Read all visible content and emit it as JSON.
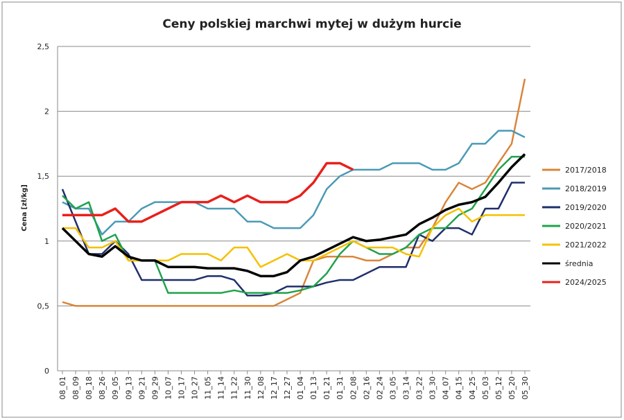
{
  "chart_data": {
    "type": "line",
    "title": "Ceny polskiej marchwi mytej w dużym hurcie",
    "y_label": "Cena [zł/kg]",
    "categories": [
      "08_01",
      "08_09",
      "08_18",
      "08_26",
      "09_05",
      "09_13",
      "09_21",
      "09_29",
      "10_07",
      "10_17",
      "10_27",
      "11_05",
      "11_14",
      "11_22",
      "11_30",
      "12_08",
      "12_17",
      "12_27",
      "01_04",
      "01_13",
      "01_21",
      "01_31",
      "02_08",
      "02_16",
      "02_24",
      "03_05",
      "03_14",
      "03_22",
      "03_30",
      "04_07",
      "04_15",
      "04_25",
      "05_03",
      "05_12",
      "05_20",
      "05_30"
    ],
    "ylim": [
      0,
      2.5
    ],
    "yticks": [
      0,
      {
        "value": 0.5,
        "label": "0,5"
      },
      1,
      {
        "value": 1.5,
        "label": "1,5"
      },
      2,
      {
        "value": 2.5,
        "label": "2,5"
      }
    ],
    "grid": true,
    "legend": "right",
    "series": [
      {
        "name": "2017/2018",
        "color": "#d9853b",
        "values": [
          0.53,
          0.5,
          0.5,
          0.5,
          0.5,
          0.5,
          0.5,
          0.5,
          0.5,
          0.5,
          0.5,
          0.5,
          0.5,
          0.5,
          0.5,
          0.5,
          0.5,
          0.55,
          0.6,
          0.85,
          0.88,
          0.88,
          0.88,
          0.85,
          0.85,
          0.9,
          0.95,
          0.95,
          1.1,
          1.3,
          1.45,
          1.4,
          1.45,
          1.6,
          1.75,
          2.25
        ]
      },
      {
        "name": "2018/2019",
        "color": "#4a9ab5",
        "values": [
          1.3,
          1.25,
          1.25,
          1.05,
          1.15,
          1.15,
          1.25,
          1.3,
          1.3,
          1.3,
          1.3,
          1.25,
          1.25,
          1.25,
          1.15,
          1.15,
          1.1,
          1.1,
          1.1,
          1.2,
          1.4,
          1.5,
          1.55,
          1.55,
          1.55,
          1.6,
          1.6,
          1.6,
          1.55,
          1.55,
          1.6,
          1.75,
          1.75,
          1.85,
          1.85,
          1.8
        ]
      },
      {
        "name": "2019/2020",
        "color": "#1f2f6b",
        "values": [
          1.4,
          1.15,
          0.9,
          0.9,
          1.0,
          0.9,
          0.7,
          0.7,
          0.7,
          0.7,
          0.7,
          0.73,
          0.73,
          0.7,
          0.58,
          0.58,
          0.6,
          0.65,
          0.65,
          0.65,
          0.68,
          0.7,
          0.7,
          0.75,
          0.8,
          0.8,
          0.8,
          1.05,
          1.0,
          1.1,
          1.1,
          1.05,
          1.25,
          1.25,
          1.45,
          1.45
        ]
      },
      {
        "name": "2020/2021",
        "color": "#1fa24b",
        "values": [
          1.35,
          1.25,
          1.3,
          1.0,
          1.05,
          0.85,
          0.85,
          0.85,
          0.6,
          0.6,
          0.6,
          0.6,
          0.6,
          0.62,
          0.6,
          0.6,
          0.6,
          0.6,
          0.62,
          0.65,
          0.75,
          0.9,
          1.0,
          0.95,
          0.9,
          0.9,
          0.95,
          1.05,
          1.1,
          1.1,
          1.2,
          1.25,
          1.4,
          1.55,
          1.65,
          1.65
        ]
      },
      {
        "name": "2021/2022",
        "color": "#f5c000",
        "values": [
          1.1,
          1.1,
          0.95,
          0.95,
          1.0,
          0.85,
          0.85,
          0.85,
          0.85,
          0.9,
          0.9,
          0.9,
          0.85,
          0.95,
          0.95,
          0.8,
          0.85,
          0.9,
          0.85,
          0.85,
          0.9,
          0.95,
          1.0,
          0.95,
          0.95,
          0.95,
          0.9,
          0.88,
          1.1,
          1.2,
          1.25,
          1.15,
          1.2,
          1.2,
          1.2,
          1.2
        ]
      },
      {
        "name": "średnia",
        "color": "#000000",
        "values": [
          1.1,
          1.0,
          0.9,
          0.88,
          0.96,
          0.88,
          0.85,
          0.85,
          0.8,
          0.8,
          0.8,
          0.79,
          0.79,
          0.79,
          0.77,
          0.73,
          0.73,
          0.76,
          0.85,
          0.88,
          0.93,
          0.98,
          1.03,
          1.0,
          1.01,
          1.03,
          1.05,
          1.13,
          1.18,
          1.24,
          1.28,
          1.3,
          1.34,
          1.45,
          1.57,
          1.67
        ]
      },
      {
        "name": "2024/2025",
        "color": "#e8201c",
        "values": [
          1.2,
          1.2,
          1.2,
          1.2,
          1.25,
          1.15,
          1.15,
          1.2,
          1.25,
          1.3,
          1.3,
          1.3,
          1.35,
          1.3,
          1.35,
          1.3,
          1.3,
          1.3,
          1.35,
          1.45,
          1.6,
          1.6,
          1.55,
          null,
          null,
          null,
          null,
          null,
          null,
          null,
          null,
          null,
          null,
          null,
          null,
          null
        ]
      }
    ]
  }
}
